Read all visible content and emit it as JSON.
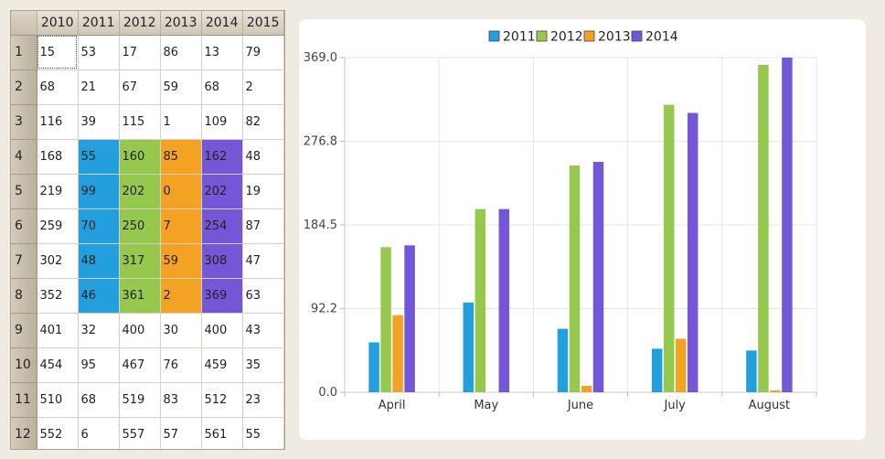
{
  "spreadsheet": {
    "columns": [
      "2010",
      "2011",
      "2012",
      "2013",
      "2014",
      "2015"
    ],
    "rows": [
      {
        "label": "1",
        "cells": [
          "15",
          "53",
          "17",
          "86",
          "13",
          "79"
        ]
      },
      {
        "label": "2",
        "cells": [
          "68",
          "21",
          "67",
          "59",
          "68",
          "2"
        ]
      },
      {
        "label": "3",
        "cells": [
          "116",
          "39",
          "115",
          "1",
          "109",
          "82"
        ]
      },
      {
        "label": "4",
        "cells": [
          "168",
          "55",
          "160",
          "85",
          "162",
          "48"
        ]
      },
      {
        "label": "5",
        "cells": [
          "219",
          "99",
          "202",
          "0",
          "202",
          "19"
        ]
      },
      {
        "label": "6",
        "cells": [
          "259",
          "70",
          "250",
          "7",
          "254",
          "87"
        ]
      },
      {
        "label": "7",
        "cells": [
          "302",
          "48",
          "317",
          "59",
          "308",
          "47"
        ]
      },
      {
        "label": "8",
        "cells": [
          "352",
          "46",
          "361",
          "2",
          "369",
          "63"
        ]
      },
      {
        "label": "9",
        "cells": [
          "401",
          "32",
          "400",
          "30",
          "400",
          "43"
        ]
      },
      {
        "label": "10",
        "cells": [
          "454",
          "95",
          "467",
          "76",
          "459",
          "35"
        ]
      },
      {
        "label": "11",
        "cells": [
          "510",
          "68",
          "519",
          "83",
          "512",
          "23"
        ]
      },
      {
        "label": "12",
        "cells": [
          "552",
          "6",
          "557",
          "57",
          "561",
          "55"
        ]
      }
    ],
    "highlight": {
      "row_range": [
        4,
        8
      ],
      "column_colors": {
        "2011": "#229fdc",
        "2012": "#96c84e",
        "2013": "#f4a224",
        "2014": "#7457d6"
      }
    }
  },
  "chart_data": {
    "type": "bar",
    "title": "",
    "xlabel": "",
    "ylabel": "",
    "categories": [
      "April",
      "May",
      "June",
      "July",
      "August"
    ],
    "series": [
      {
        "name": "2011",
        "color": "#229fdc",
        "values": [
          55,
          99,
          70,
          48,
          46
        ]
      },
      {
        "name": "2012",
        "color": "#96c84e",
        "values": [
          160,
          202,
          250,
          317,
          361
        ]
      },
      {
        "name": "2013",
        "color": "#f4a224",
        "values": [
          85,
          0,
          7,
          59,
          2
        ]
      },
      {
        "name": "2014",
        "color": "#7457d6",
        "values": [
          162,
          202,
          254,
          308,
          369
        ]
      }
    ],
    "ylim": [
      0,
      369
    ],
    "yticks": [
      "0.0",
      "92.2",
      "184.5",
      "276.8",
      "369.0"
    ],
    "legend_position": "top",
    "grid": true
  }
}
